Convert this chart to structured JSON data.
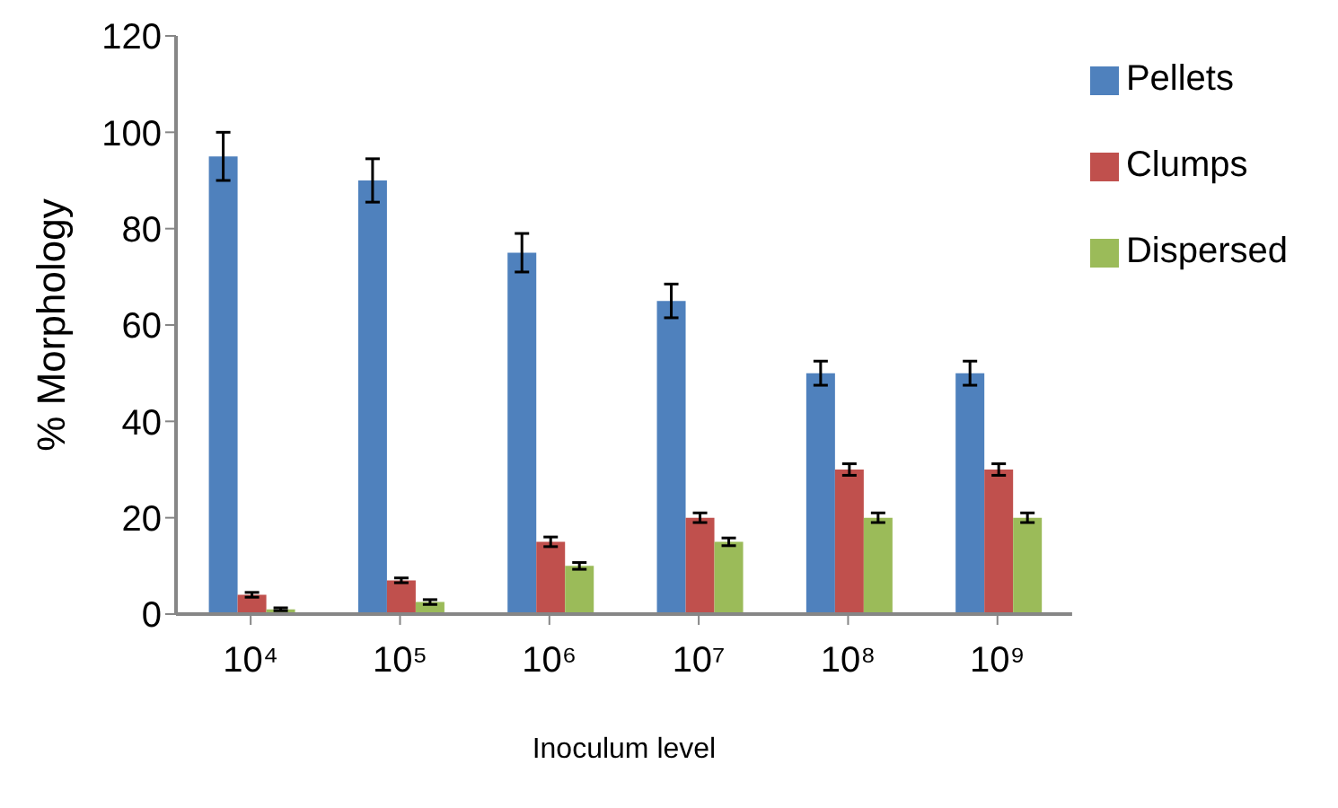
{
  "chart_data": {
    "type": "bar",
    "xlabel": "Inoculum level",
    "ylabel": "% Morphology",
    "categories": [
      "10⁴",
      "10⁵",
      "10⁶",
      "10⁷",
      "10⁸",
      "10⁹"
    ],
    "series": [
      {
        "name": "Pellets",
        "color": "#4f81bd",
        "values": [
          95,
          90,
          75,
          65,
          50,
          50
        ],
        "errors": [
          5,
          4.5,
          4,
          3.5,
          2.5,
          2.5
        ]
      },
      {
        "name": "Clumps",
        "color": "#c0504d",
        "values": [
          4,
          7,
          15,
          20,
          30,
          30
        ],
        "errors": [
          0.5,
          0.5,
          1,
          1,
          1.2,
          1.2
        ]
      },
      {
        "name": "Dispersed",
        "color": "#9bbb59",
        "values": [
          1,
          2.5,
          10,
          15,
          20,
          20
        ],
        "errors": [
          0.3,
          0.5,
          0.7,
          0.8,
          1,
          1
        ]
      }
    ],
    "ylim": [
      0,
      120
    ],
    "yticks": [
      0,
      20,
      40,
      60,
      80,
      100,
      120
    ],
    "grid": false,
    "legend": "top right"
  }
}
